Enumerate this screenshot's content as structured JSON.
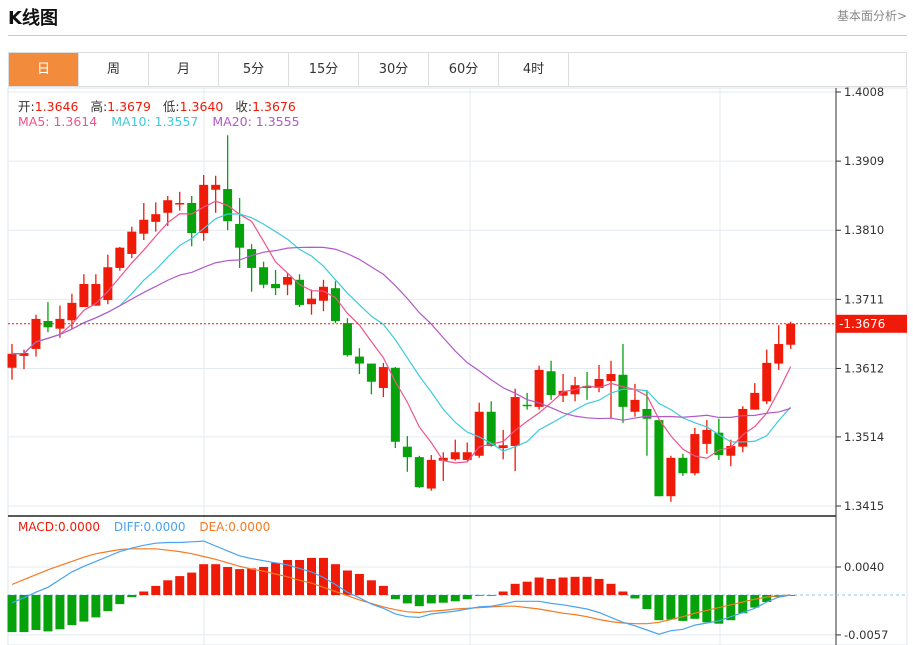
{
  "header": {
    "title": "K线图",
    "fundamental_link": "基本面分析>"
  },
  "tabs": [
    {
      "label": "日",
      "active": true
    },
    {
      "label": "周"
    },
    {
      "label": "月"
    },
    {
      "label": "5分"
    },
    {
      "label": "15分"
    },
    {
      "label": "30分"
    },
    {
      "label": "60分"
    },
    {
      "label": "4时"
    }
  ],
  "ohlc_legend": {
    "open_label": "开:",
    "open": "1.3646",
    "high_label": "高:",
    "high": "1.3679",
    "low_label": "低:",
    "low": "1.3640",
    "close_label": "收:",
    "close": "1.3676"
  },
  "ma_legend": {
    "ma5": "MA5: 1.3614",
    "ma10": "MA10: 1.3557",
    "ma20": "MA20: 1.3555"
  },
  "macd_legend": {
    "macd": "MACD:0.0000",
    "diff": "DIFF:0.0000",
    "dea": "DEA:0.0000"
  },
  "colors": {
    "up": "#f01a08",
    "down": "#06a20b",
    "ma5": "#f0548a",
    "ma10": "#3fcadc",
    "ma20": "#b25ac8",
    "diff": "#4aa3f0",
    "dea": "#f57a22",
    "accent": "#f28c3c"
  },
  "chart_data": {
    "type": "candlestick",
    "price_axis": {
      "ticks": [
        "1.4008",
        "1.3909",
        "1.3810",
        "1.3711",
        "1.3612",
        "1.3514",
        "1.3415"
      ],
      "range": [
        1.3415,
        1.4008
      ]
    },
    "current_price": "-1.3676",
    "current_price_value": 1.3676,
    "candles_ochl": [
      [
        1.3613,
        1.3633,
        1.3647,
        1.3596
      ],
      [
        1.363,
        1.3634,
        1.3639,
        1.3611
      ],
      [
        1.364,
        1.3683,
        1.3689,
        1.3629
      ],
      [
        1.368,
        1.3671,
        1.3707,
        1.3664
      ],
      [
        1.3669,
        1.3683,
        1.3702,
        1.3656
      ],
      [
        1.3681,
        1.3706,
        1.3719,
        1.3669
      ],
      [
        1.37,
        1.3733,
        1.3747,
        1.37
      ],
      [
        1.3702,
        1.3733,
        1.3747,
        1.3702
      ],
      [
        1.371,
        1.3757,
        1.3775,
        1.3704
      ],
      [
        1.3756,
        1.3785,
        1.3786,
        1.3752
      ],
      [
        1.3776,
        1.3808,
        1.3815,
        1.377
      ],
      [
        1.3805,
        1.3825,
        1.3849,
        1.3796
      ],
      [
        1.3822,
        1.3833,
        1.385,
        1.3808
      ],
      [
        1.3835,
        1.3853,
        1.3859,
        1.3816
      ],
      [
        1.3848,
        1.3849,
        1.3865,
        1.3838
      ],
      [
        1.3849,
        1.3806,
        1.3859,
        1.3787
      ],
      [
        1.3806,
        1.3875,
        1.3889,
        1.3795
      ],
      [
        1.3868,
        1.3875,
        1.3888,
        1.3835
      ],
      [
        1.3869,
        1.3823,
        1.3946,
        1.381
      ],
      [
        1.3819,
        1.3785,
        1.3856,
        1.3756
      ],
      [
        1.3783,
        1.3756,
        1.379,
        1.3722
      ],
      [
        1.3757,
        1.3732,
        1.3765,
        1.3727
      ],
      [
        1.3733,
        1.3727,
        1.3753,
        1.3717
      ],
      [
        1.3732,
        1.3743,
        1.3749,
        1.3717
      ],
      [
        1.3739,
        1.3703,
        1.3747,
        1.37
      ],
      [
        1.3704,
        1.3712,
        1.3725,
        1.3689
      ],
      [
        1.3709,
        1.3729,
        1.3739,
        1.3694
      ],
      [
        1.3727,
        1.368,
        1.3737,
        1.3677
      ],
      [
        1.3677,
        1.3631,
        1.3684,
        1.3629
      ],
      [
        1.3629,
        1.3619,
        1.3641,
        1.3604
      ],
      [
        1.3619,
        1.3593,
        1.3619,
        1.3575
      ],
      [
        1.3584,
        1.3614,
        1.362,
        1.3571
      ],
      [
        1.3613,
        1.3507,
        1.3614,
        1.3498
      ],
      [
        1.35,
        1.3485,
        1.3515,
        1.3464
      ],
      [
        1.3485,
        1.3442,
        1.3487,
        1.3441
      ],
      [
        1.344,
        1.3481,
        1.3488,
        1.3437
      ],
      [
        1.348,
        1.3484,
        1.3492,
        1.3451
      ],
      [
        1.3482,
        1.3492,
        1.351,
        1.348
      ],
      [
        1.3481,
        1.3492,
        1.3506,
        1.348
      ],
      [
        1.3487,
        1.355,
        1.3563,
        1.3484
      ],
      [
        1.355,
        1.3501,
        1.3565,
        1.35
      ],
      [
        1.3498,
        1.3502,
        1.3524,
        1.3482
      ],
      [
        1.3501,
        1.3571,
        1.3583,
        1.3465
      ],
      [
        1.356,
        1.3558,
        1.3577,
        1.3553
      ],
      [
        1.3557,
        1.361,
        1.3616,
        1.3553
      ],
      [
        1.3608,
        1.3574,
        1.3623,
        1.3567
      ],
      [
        1.3573,
        1.358,
        1.3604,
        1.3564
      ],
      [
        1.3575,
        1.3588,
        1.36,
        1.3565
      ],
      [
        1.3587,
        1.3584,
        1.3607,
        1.3567
      ],
      [
        1.3584,
        1.3597,
        1.3617,
        1.3578
      ],
      [
        1.3594,
        1.3604,
        1.3623,
        1.3541
      ],
      [
        1.3603,
        1.3557,
        1.3647,
        1.3534
      ],
      [
        1.355,
        1.3567,
        1.359,
        1.3543
      ],
      [
        1.3554,
        1.354,
        1.3581,
        1.3487
      ],
      [
        1.3538,
        1.3429,
        1.3538,
        1.3429
      ],
      [
        1.3429,
        1.3484,
        1.3487,
        1.3421
      ],
      [
        1.3484,
        1.3462,
        1.349,
        1.3458
      ],
      [
        1.3462,
        1.3518,
        1.3527,
        1.3459
      ],
      [
        1.3504,
        1.3524,
        1.3538,
        1.349
      ],
      [
        1.352,
        1.3488,
        1.354,
        1.3481
      ],
      [
        1.3487,
        1.3501,
        1.351,
        1.3472
      ],
      [
        1.35,
        1.3554,
        1.3558,
        1.3492
      ],
      [
        1.3553,
        1.3577,
        1.3591,
        1.3553
      ],
      [
        1.3565,
        1.362,
        1.3639,
        1.3561
      ],
      [
        1.3619,
        1.3647,
        1.3674,
        1.361
      ],
      [
        1.3646,
        1.3676,
        1.3679,
        1.364
      ]
    ],
    "macd_axis": {
      "ticks": [
        "0.0040",
        "-0.0057"
      ],
      "range": [
        -0.0057,
        0.004
      ]
    },
    "macd_hist": [
      -0.0053,
      -0.0053,
      -0.005,
      -0.0052,
      -0.0049,
      -0.0043,
      -0.0038,
      -0.0032,
      -0.0023,
      -0.0013,
      -0.0003,
      0.0005,
      0.0013,
      0.0021,
      0.0027,
      0.0032,
      0.0044,
      0.0044,
      0.004,
      0.0037,
      0.0038,
      0.004,
      0.0046,
      0.005,
      0.005,
      0.0053,
      0.0053,
      0.0044,
      0.0035,
      0.003,
      0.0021,
      0.0013,
      -0.0006,
      -0.0012,
      -0.0016,
      -0.0012,
      -0.0011,
      -0.0009,
      -0.0006,
      -0.0001,
      -0.0001,
      0.0005,
      0.0016,
      0.0019,
      0.0025,
      0.0023,
      0.0025,
      0.0026,
      0.0026,
      0.0023,
      0.0016,
      0.0005,
      -0.0005,
      -0.002,
      -0.0036,
      -0.0035,
      -0.0037,
      -0.0034,
      -0.0039,
      -0.0041,
      -0.0036,
      -0.0026,
      -0.0018,
      -0.001,
      -0.0003,
      0.0
    ],
    "diff": [
      -0.0011,
      -0.0004,
      0.0004,
      0.0011,
      0.0022,
      0.0033,
      0.0041,
      0.0048,
      0.0055,
      0.0062,
      0.0067,
      0.0071,
      0.0074,
      0.0075,
      0.0075,
      0.0076,
      0.0077,
      0.007,
      0.0063,
      0.0056,
      0.0052,
      0.0049,
      0.0046,
      0.0043,
      0.0038,
      0.0033,
      0.0025,
      0.0015,
      0.0004,
      -0.0004,
      -0.0013,
      -0.0019,
      -0.0027,
      -0.0031,
      -0.0032,
      -0.0027,
      -0.0025,
      -0.0023,
      -0.002,
      -0.0017,
      -0.0016,
      -0.0013,
      -0.0009,
      -0.0009,
      -0.0009,
      -0.0012,
      -0.0014,
      -0.0017,
      -0.002,
      -0.0025,
      -0.0032,
      -0.0039,
      -0.0044,
      -0.005,
      -0.0056,
      -0.0051,
      -0.0049,
      -0.0043,
      -0.004,
      -0.0037,
      -0.0031,
      -0.0025,
      -0.0019,
      -0.001,
      -0.0003,
      0.0
    ],
    "dea": [
      0.0015,
      0.0022,
      0.0029,
      0.0036,
      0.0042,
      0.0048,
      0.0054,
      0.0059,
      0.0062,
      0.0065,
      0.0066,
      0.0066,
      0.0066,
      0.0064,
      0.0062,
      0.0059,
      0.0055,
      0.0051,
      0.0046,
      0.0041,
      0.0037,
      0.0034,
      0.003,
      0.0026,
      0.0021,
      0.0017,
      0.0011,
      0.0005,
      -0.0001,
      -0.0007,
      -0.0012,
      -0.0017,
      -0.0021,
      -0.0024,
      -0.0025,
      -0.0023,
      -0.0022,
      -0.002,
      -0.0019,
      -0.0018,
      -0.0017,
      -0.0016,
      -0.0016,
      -0.0018,
      -0.002,
      -0.0023,
      -0.0026,
      -0.0028,
      -0.0031,
      -0.0035,
      -0.0038,
      -0.004,
      -0.0041,
      -0.0041,
      -0.0039,
      -0.0035,
      -0.0031,
      -0.0026,
      -0.0022,
      -0.0018,
      -0.0014,
      -0.001,
      -0.0006,
      -0.0003,
      -0.0001,
      0.0
    ]
  }
}
